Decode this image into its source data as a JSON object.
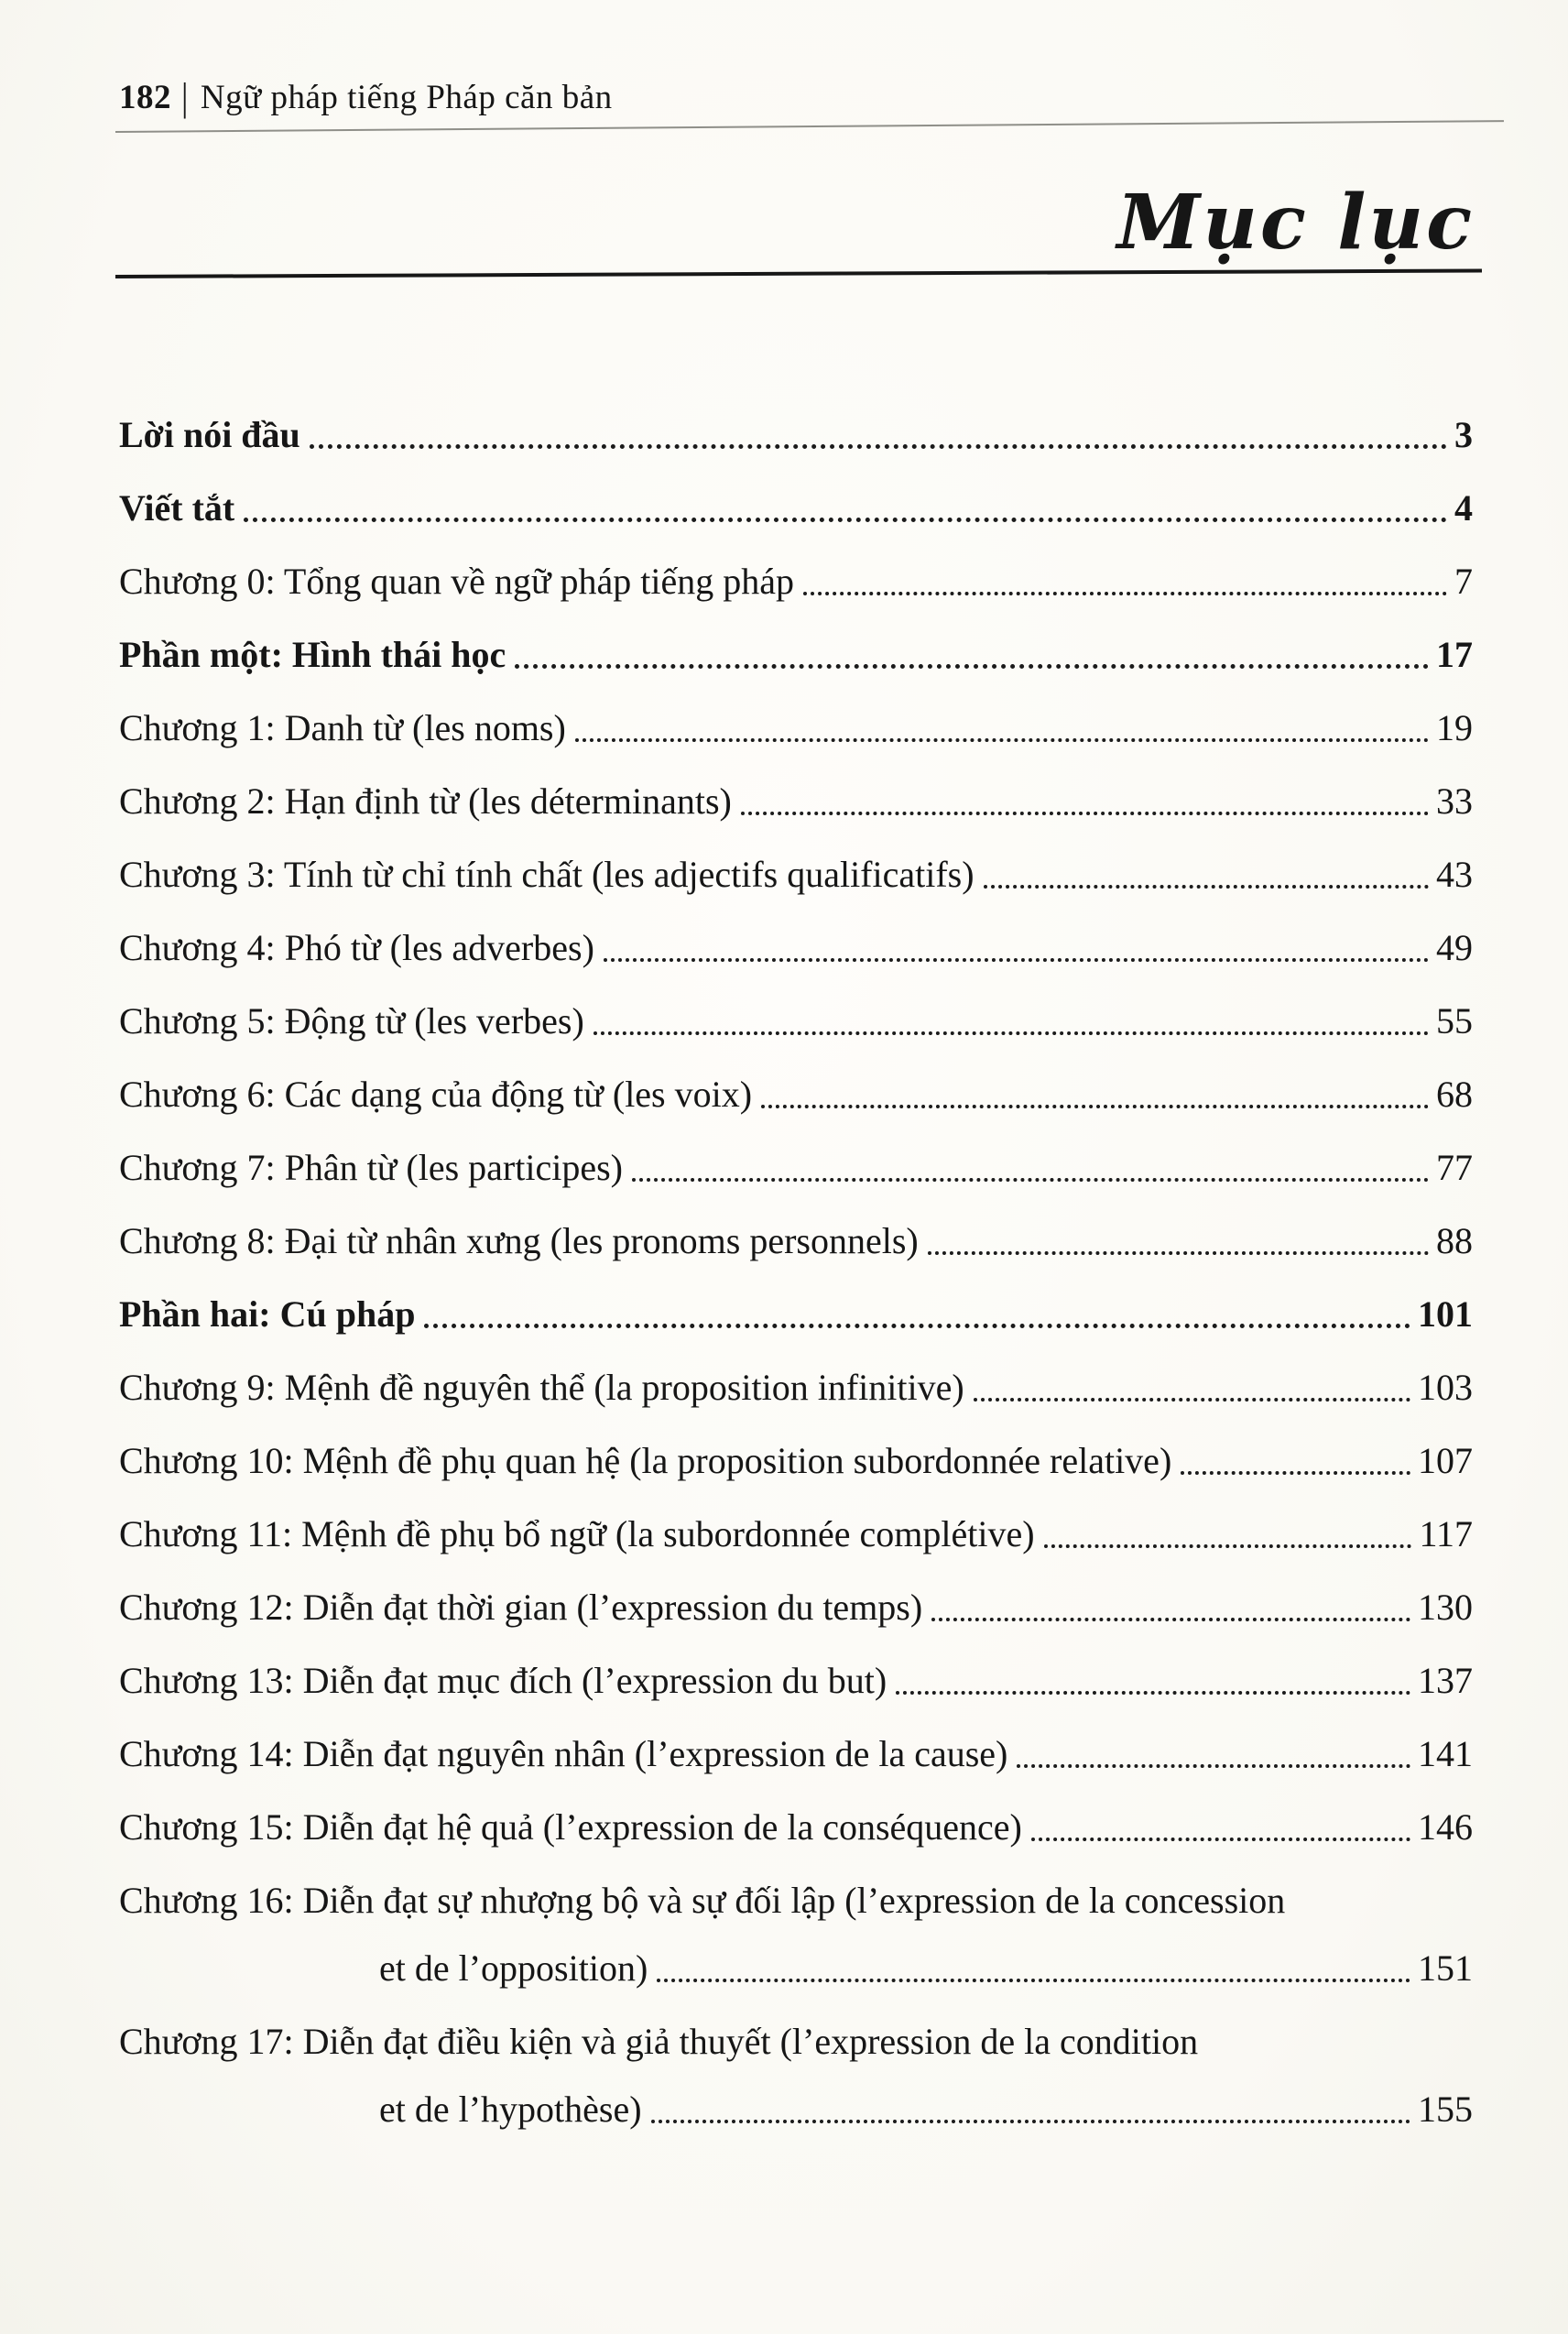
{
  "header": {
    "page_number": "182",
    "separator": "|",
    "book_title": "Ngữ pháp tiếng Pháp căn bản"
  },
  "title": "Mục lục",
  "toc_entries": [
    {
      "label": "Lời nói đầu",
      "page": "3",
      "bold": true
    },
    {
      "label": "Viết tắt",
      "page": "4",
      "bold": true
    },
    {
      "label": "Chương 0: Tổng quan về ngữ pháp tiếng pháp",
      "page": "7"
    },
    {
      "label": "Phần một: Hình thái học",
      "page": "17",
      "bold": true
    },
    {
      "label": "Chương 1: Danh từ (les noms)",
      "page": "19"
    },
    {
      "label": "Chương 2: Hạn định từ (les déterminants)",
      "page": "33"
    },
    {
      "label": "Chương 3: Tính từ chỉ tính chất (les adjectifs qualificatifs)",
      "page": "43"
    },
    {
      "label": "Chương 4: Phó từ (les adverbes)",
      "page": "49"
    },
    {
      "label": "Chương 5: Động từ (les verbes)",
      "page": "55"
    },
    {
      "label": "Chương 6: Các dạng của động từ (les voix)",
      "page": "68"
    },
    {
      "label": "Chương 7: Phân từ (les participes)",
      "page": "77"
    },
    {
      "label": "Chương 8: Đại từ nhân xưng (les pronoms personnels)",
      "page": "88"
    },
    {
      "label": "Phần hai: Cú pháp",
      "page": "101",
      "bold": true
    },
    {
      "label": "Chương 9: Mệnh đề nguyên thể (la proposition infinitive)",
      "page": "103"
    },
    {
      "label": "Chương 10: Mệnh đề phụ quan hệ (la proposition subordonnée relative)",
      "page": "107"
    },
    {
      "label": "Chương 11: Mệnh đề phụ bổ ngữ (la subordonnée complétive)",
      "page": "117"
    },
    {
      "label": "Chương 12: Diễn đạt thời gian (l’expression du temps)",
      "page": "130"
    },
    {
      "label": "Chương 13: Diễn đạt mục đích (l’expression du but)",
      "page": "137"
    },
    {
      "label": "Chương 14: Diễn đạt nguyên nhân (l’expression de la cause)",
      "page": "141"
    },
    {
      "label": "Chương 15: Diễn đạt hệ quả (l’expression de la conséquence)",
      "page": "146"
    },
    {
      "label": "Chương 16: Diễn đạt sự nhượng bộ và sự đối lập (l’expression de la concession",
      "continuation": "et de l’opposition)",
      "page": "151"
    },
    {
      "label": "Chương 17: Diễn đạt điều kiện và giả thuyết (l’expression de la condition",
      "continuation": "et de l’hypothèse)",
      "page": "155"
    }
  ]
}
